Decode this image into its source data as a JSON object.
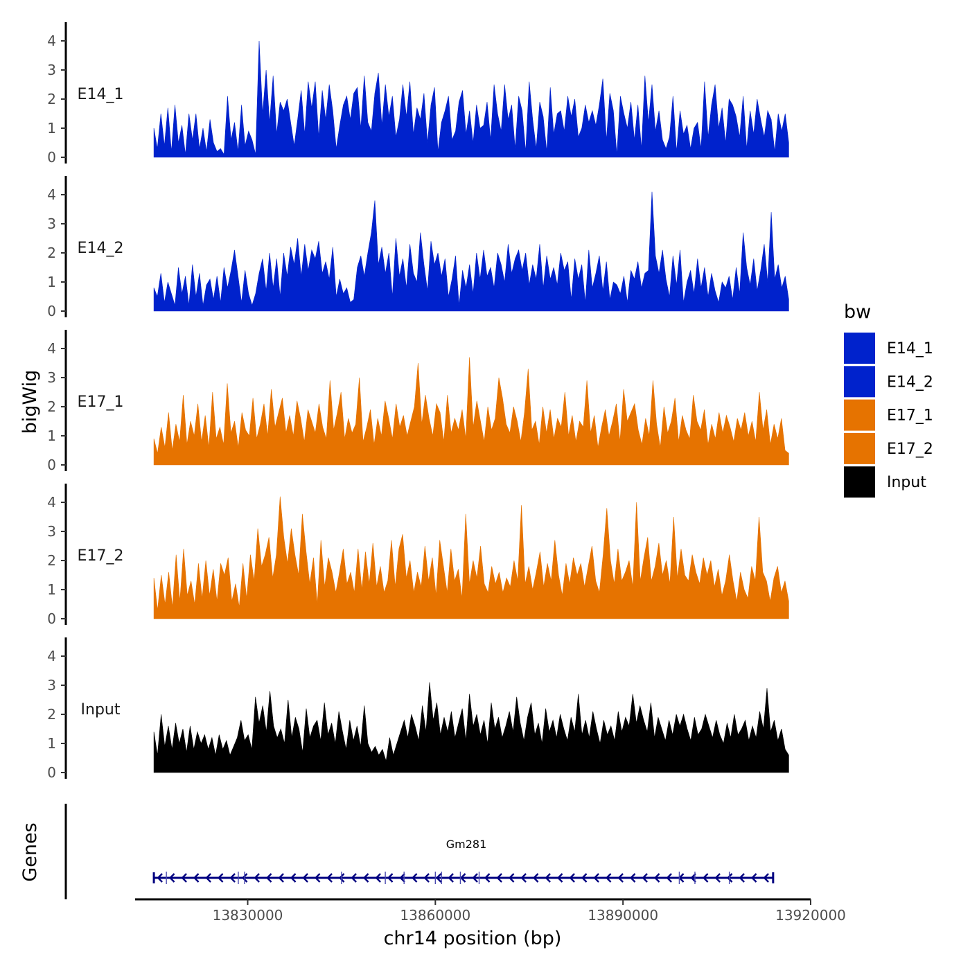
{
  "chart_data": {
    "type": "area",
    "title": "",
    "ylabel": "bigWig",
    "xlabel": "chr14 position (bp)",
    "genes_label": "Genes",
    "x_range_bp": [
      13815000,
      13916500
    ],
    "x_axis_limits_bp": [
      13812000,
      13920000
    ],
    "x_ticks": [
      13830000,
      13860000,
      13890000,
      13920000
    ],
    "x_tick_labels": [
      "13830000",
      "13860000",
      "13890000",
      "13920000"
    ],
    "y_range": [
      0,
      4.5
    ],
    "y_ticks": [
      0,
      1,
      2,
      3,
      4
    ],
    "y_tick_labels": [
      "0",
      "1",
      "2",
      "3",
      "4"
    ],
    "tracks": [
      {
        "name": "E14_1",
        "color": "#0022cc",
        "values": [
          1.0,
          0.3,
          1.5,
          0.4,
          1.7,
          0.2,
          1.8,
          0.5,
          1.1,
          0.1,
          1.5,
          0.6,
          1.5,
          0.3,
          1.0,
          0.2,
          1.3,
          0.5,
          0.2,
          0.3,
          0.1,
          2.1,
          0.6,
          1.2,
          0.2,
          1.8,
          0.4,
          0.9,
          0.6,
          0.1,
          4.0,
          1.5,
          3.0,
          1.2,
          2.8,
          0.8,
          1.9,
          1.6,
          2.0,
          1.2,
          0.4,
          1.3,
          2.3,
          0.8,
          2.6,
          1.7,
          2.6,
          0.7,
          2.3,
          1.3,
          2.5,
          1.6,
          0.3,
          1.1,
          1.8,
          2.1,
          1.3,
          2.2,
          2.4,
          1.0,
          2.8,
          1.2,
          0.9,
          2.2,
          2.9,
          1.1,
          2.5,
          1.4,
          2.1,
          0.7,
          1.3,
          2.5,
          1.4,
          2.6,
          0.8,
          1.7,
          1.3,
          2.2,
          0.5,
          1.8,
          2.4,
          0.2,
          1.2,
          1.6,
          2.1,
          0.6,
          0.9,
          1.9,
          2.3,
          0.8,
          1.6,
          0.5,
          1.8,
          1.0,
          1.1,
          1.9,
          0.6,
          2.5,
          1.5,
          0.9,
          2.5,
          1.3,
          1.8,
          0.3,
          2.1,
          1.6,
          0.2,
          2.6,
          1.3,
          0.3,
          1.9,
          1.4,
          0.2,
          2.4,
          0.8,
          1.5,
          1.6,
          0.9,
          2.1,
          1.4,
          2.0,
          0.7,
          1.0,
          1.8,
          1.2,
          1.6,
          1.1,
          1.8,
          2.7,
          0.6,
          2.2,
          1.6,
          0.1,
          2.1,
          1.5,
          1.0,
          1.9,
          0.6,
          1.8,
          0.3,
          2.8,
          1.2,
          2.5,
          0.9,
          1.6,
          0.6,
          0.3,
          0.7,
          2.1,
          0.2,
          1.6,
          0.8,
          1.1,
          0.3,
          1.0,
          1.2,
          0.3,
          2.6,
          0.7,
          1.8,
          2.5,
          1.0,
          1.7,
          0.5,
          2.0,
          1.8,
          1.4,
          0.7,
          2.1,
          0.3,
          1.6,
          0.8,
          2.0,
          1.3,
          0.7,
          1.6,
          1.3,
          0.2,
          1.5,
          0.9,
          1.5,
          0.5
        ]
      },
      {
        "name": "E14_2",
        "color": "#0022cc",
        "values": [
          0.8,
          0.5,
          1.3,
          0.3,
          1.0,
          0.6,
          0.2,
          1.5,
          0.6,
          1.2,
          0.2,
          1.6,
          0.5,
          1.3,
          0.2,
          0.9,
          1.1,
          0.4,
          1.2,
          0.3,
          1.5,
          0.8,
          1.4,
          2.1,
          1.2,
          0.3,
          1.4,
          0.6,
          0.2,
          0.6,
          1.3,
          1.8,
          0.7,
          2.0,
          0.8,
          1.8,
          0.5,
          2.0,
          1.2,
          2.2,
          1.6,
          2.5,
          1.2,
          2.3,
          1.4,
          2.1,
          1.8,
          2.4,
          1.3,
          1.7,
          1.1,
          2.2,
          0.5,
          1.1,
          0.6,
          0.8,
          0.3,
          0.4,
          1.5,
          1.9,
          1.2,
          2.0,
          2.7,
          3.8,
          1.6,
          2.2,
          1.3,
          2.0,
          0.5,
          2.5,
          1.2,
          1.8,
          0.8,
          2.3,
          1.3,
          1.0,
          2.7,
          1.6,
          0.7,
          2.4,
          1.6,
          2.0,
          1.2,
          1.8,
          0.5,
          1.1,
          1.9,
          0.2,
          1.4,
          0.8,
          1.6,
          0.6,
          2.0,
          1.1,
          2.1,
          1.2,
          1.5,
          0.8,
          2.0,
          1.6,
          1.0,
          2.3,
          1.3,
          1.8,
          2.1,
          1.4,
          2.0,
          0.9,
          1.6,
          1.1,
          2.3,
          0.8,
          1.9,
          1.1,
          1.5,
          0.9,
          2.0,
          1.4,
          1.7,
          0.4,
          1.8,
          1.1,
          1.6,
          0.3,
          2.1,
          0.8,
          1.3,
          1.9,
          0.7,
          1.7,
          0.4,
          1.0,
          0.9,
          0.6,
          1.2,
          0.3,
          1.4,
          1.1,
          1.7,
          0.8,
          1.3,
          1.4,
          4.1,
          1.9,
          1.3,
          2.1,
          1.1,
          0.5,
          1.9,
          0.9,
          2.1,
          0.3,
          1.0,
          1.4,
          0.6,
          1.8,
          0.8,
          1.5,
          0.5,
          1.3,
          0.7,
          0.3,
          1.0,
          0.8,
          1.2,
          0.4,
          1.5,
          0.6,
          2.7,
          1.5,
          0.9,
          1.8,
          0.7,
          1.4,
          2.3,
          1.0,
          3.4,
          1.1,
          1.6,
          0.8,
          1.2,
          0.4
        ]
      },
      {
        "name": "E17_1",
        "color": "#e67300",
        "values": [
          0.9,
          0.4,
          1.3,
          0.6,
          1.8,
          0.5,
          1.4,
          0.8,
          2.4,
          0.7,
          1.5,
          1.0,
          2.1,
          0.8,
          1.7,
          0.6,
          2.5,
          0.9,
          1.3,
          0.7,
          2.8,
          1.1,
          1.5,
          0.6,
          1.8,
          1.2,
          1.0,
          2.3,
          0.9,
          1.4,
          2.1,
          1.0,
          2.6,
          1.3,
          1.8,
          2.3,
          1.1,
          1.7,
          1.0,
          2.2,
          1.6,
          0.8,
          1.9,
          1.5,
          1.1,
          2.1,
          1.3,
          0.9,
          2.9,
          1.2,
          1.8,
          2.5,
          0.9,
          1.6,
          1.1,
          1.4,
          3.0,
          0.8,
          1.3,
          1.9,
          0.7,
          1.6,
          1.0,
          2.2,
          1.6,
          0.9,
          2.1,
          1.3,
          1.7,
          1.0,
          1.5,
          2.0,
          3.5,
          1.4,
          2.4,
          1.6,
          1.0,
          2.1,
          1.8,
          0.8,
          2.4,
          1.1,
          1.6,
          1.2,
          1.9,
          0.9,
          3.7,
          1.3,
          2.2,
          1.5,
          0.8,
          2.0,
          1.2,
          1.6,
          3.0,
          2.3,
          1.4,
          1.1,
          2.0,
          1.5,
          0.8,
          1.8,
          3.3,
          1.2,
          1.5,
          0.7,
          2.0,
          1.1,
          1.9,
          0.9,
          1.6,
          1.3,
          2.5,
          1.0,
          1.7,
          0.8,
          1.5,
          1.3,
          2.9,
          1.1,
          1.7,
          0.6,
          1.3,
          1.9,
          1.0,
          1.5,
          2.1,
          0.8,
          2.6,
          1.5,
          1.8,
          2.1,
          1.2,
          0.7,
          1.6,
          1.0,
          2.9,
          1.4,
          0.6,
          2.0,
          1.1,
          1.5,
          2.3,
          0.8,
          1.7,
          1.2,
          0.9,
          2.4,
          1.5,
          1.2,
          1.9,
          0.7,
          1.4,
          0.9,
          1.8,
          1.1,
          1.7,
          1.3,
          0.8,
          1.6,
          1.2,
          1.8,
          1.0,
          1.5,
          0.8,
          2.5,
          1.2,
          1.9,
          0.7,
          1.4,
          0.9,
          1.6,
          0.5,
          0.4
        ]
      },
      {
        "name": "E17_2",
        "color": "#e67300",
        "values": [
          1.4,
          0.3,
          1.5,
          0.5,
          1.6,
          0.4,
          2.2,
          0.6,
          2.4,
          0.8,
          1.3,
          0.5,
          1.9,
          0.7,
          2.0,
          0.8,
          1.7,
          0.6,
          1.9,
          1.5,
          2.1,
          0.6,
          1.2,
          0.4,
          1.9,
          0.7,
          2.2,
          1.3,
          3.1,
          1.8,
          2.2,
          2.8,
          1.4,
          2.2,
          4.2,
          2.8,
          1.9,
          3.1,
          2.2,
          1.5,
          3.6,
          2.3,
          1.2,
          2.1,
          0.5,
          2.7,
          1.1,
          2.1,
          1.6,
          0.9,
          1.6,
          2.4,
          1.2,
          1.6,
          0.9,
          2.4,
          1.0,
          2.3,
          1.2,
          2.6,
          1.1,
          1.8,
          0.9,
          1.3,
          2.7,
          1.1,
          2.4,
          2.9,
          1.4,
          2.0,
          0.9,
          1.6,
          1.1,
          2.5,
          1.3,
          2.1,
          0.8,
          2.7,
          1.8,
          0.9,
          2.4,
          1.3,
          1.7,
          0.7,
          3.6,
          1.2,
          2.0,
          1.4,
          2.5,
          1.2,
          0.9,
          1.8,
          1.2,
          1.6,
          0.9,
          1.4,
          1.1,
          2.0,
          1.3,
          3.9,
          1.2,
          1.8,
          1.0,
          1.6,
          2.3,
          1.1,
          1.9,
          1.3,
          2.7,
          1.5,
          0.8,
          1.9,
          1.2,
          2.1,
          1.5,
          1.9,
          1.1,
          1.8,
          2.5,
          1.3,
          0.9,
          2.2,
          3.8,
          2.0,
          1.2,
          2.4,
          1.3,
          1.6,
          2.0,
          1.1,
          4.0,
          1.3,
          2.1,
          2.8,
          1.3,
          1.8,
          2.6,
          1.5,
          2.0,
          1.2,
          3.5,
          1.4,
          2.4,
          1.5,
          1.3,
          2.2,
          1.6,
          1.2,
          2.1,
          1.5,
          2.0,
          1.1,
          1.7,
          0.8,
          1.3,
          2.2,
          1.3,
          0.6,
          1.6,
          1.0,
          0.7,
          1.8,
          1.3,
          3.5,
          1.6,
          1.3,
          0.6,
          1.4,
          1.8,
          0.9,
          1.3,
          0.6
        ]
      },
      {
        "name": "Input",
        "color": "#000000",
        "values": [
          1.4,
          0.6,
          2.0,
          0.9,
          1.6,
          0.8,
          1.7,
          1.0,
          1.5,
          0.7,
          1.6,
          0.8,
          1.4,
          1.0,
          1.3,
          0.8,
          1.2,
          0.6,
          1.3,
          0.8,
          1.1,
          0.6,
          0.9,
          1.2,
          1.8,
          1.1,
          1.3,
          0.8,
          2.6,
          1.7,
          2.3,
          1.4,
          2.8,
          1.6,
          1.2,
          1.5,
          1.0,
          2.5,
          1.2,
          1.9,
          1.5,
          0.7,
          2.2,
          1.2,
          1.6,
          1.8,
          1.1,
          2.4,
          1.3,
          1.7,
          1.0,
          2.1,
          1.4,
          0.8,
          1.8,
          1.1,
          1.6,
          0.9,
          2.3,
          1.0,
          0.7,
          0.9,
          0.6,
          0.8,
          0.4,
          1.2,
          0.6,
          1.0,
          1.4,
          1.8,
          1.2,
          2.0,
          1.6,
          1.1,
          2.3,
          1.4,
          3.1,
          1.8,
          2.4,
          1.3,
          1.9,
          1.4,
          2.1,
          1.2,
          1.7,
          2.2,
          1.1,
          2.7,
          1.6,
          2.0,
          1.3,
          1.8,
          1.0,
          2.4,
          1.5,
          1.9,
          1.2,
          1.6,
          2.1,
          1.4,
          2.6,
          1.7,
          1.1,
          1.9,
          2.4,
          1.3,
          1.7,
          1.0,
          2.2,
          1.4,
          1.8,
          1.2,
          2.0,
          1.5,
          1.1,
          1.9,
          1.4,
          2.7,
          1.3,
          1.8,
          1.2,
          2.1,
          1.5,
          1.0,
          1.8,
          1.3,
          1.6,
          1.1,
          2.1,
          1.4,
          1.9,
          1.6,
          2.7,
          1.7,
          2.3,
          1.8,
          1.4,
          2.4,
          1.2,
          1.9,
          1.5,
          1.1,
          1.8,
          1.3,
          2.0,
          1.6,
          2.0,
          1.5,
          1.1,
          1.9,
          1.3,
          1.5,
          2.0,
          1.6,
          1.2,
          1.8,
          1.3,
          1.0,
          1.7,
          1.2,
          2.0,
          1.3,
          1.5,
          1.8,
          1.1,
          1.6,
          1.2,
          2.1,
          1.5,
          2.9,
          1.4,
          1.8,
          1.1,
          1.5,
          0.8,
          0.6
        ]
      }
    ],
    "gene": {
      "name": "Gm281",
      "start_bp": 13815000,
      "end_bp": 13914000,
      "strand": "-",
      "color": "#000080",
      "exon_positions_bp": [
        13817000,
        13828500,
        13829500,
        13845000,
        13852000,
        13855000,
        13860000,
        13861000,
        13864000,
        13867000,
        13899000,
        13901500,
        13907000
      ]
    },
    "legend": {
      "title": "bw",
      "placement": "right",
      "entries": [
        {
          "label": "E14_1",
          "color": "#0022cc"
        },
        {
          "label": "E14_2",
          "color": "#0022cc"
        },
        {
          "label": "E17_1",
          "color": "#e67300"
        },
        {
          "label": "E17_2",
          "color": "#e67300"
        },
        {
          "label": "Input",
          "color": "#000000"
        }
      ]
    }
  }
}
